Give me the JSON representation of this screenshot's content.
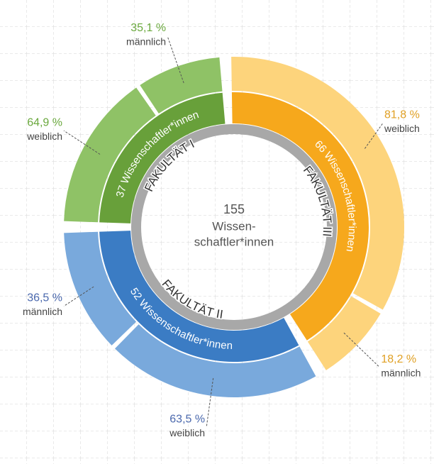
{
  "chart_data": {
    "type": "nested-donut",
    "center_value": 155,
    "center_label": [
      "Wissen-",
      "schaftler*innen"
    ],
    "faculties": [
      {
        "name": "FAKULTÄT I",
        "value": 37,
        "value_label": "37 Wissenschaftler*innen",
        "color": "#68a03a",
        "outer_color": "#8fc266",
        "text_color": "#6aa83d",
        "segments": [
          {
            "name": "weiblich",
            "value": 64.9,
            "value_label": "64,9 %"
          },
          {
            "name": "männlich",
            "value": 35.1,
            "value_label": "35,1 %"
          }
        ]
      },
      {
        "name": "FAKULTÄT III",
        "value": 66,
        "value_label": "66 Wissenschaftler*innen",
        "color": "#f6a81c",
        "outer_color": "#fdd47c",
        "text_color": "#e0a024",
        "segments": [
          {
            "name": "weiblich",
            "value": 81.8,
            "value_label": "81,8 %"
          },
          {
            "name": "männlich",
            "value": 18.2,
            "value_label": "18,2 %"
          }
        ]
      },
      {
        "name": "FAKULTÄT II",
        "value": 52,
        "value_label": "52 Wissenschaftler*innen",
        "color": "#3b7cc4",
        "outer_color": "#79a9dc",
        "text_color": "#4a68ad",
        "segments": [
          {
            "name": "weiblich",
            "value": 63.5,
            "value_label": "63,5 %"
          },
          {
            "name": "männlich",
            "value": 36.5,
            "value_label": "36,5 %"
          }
        ]
      }
    ]
  }
}
